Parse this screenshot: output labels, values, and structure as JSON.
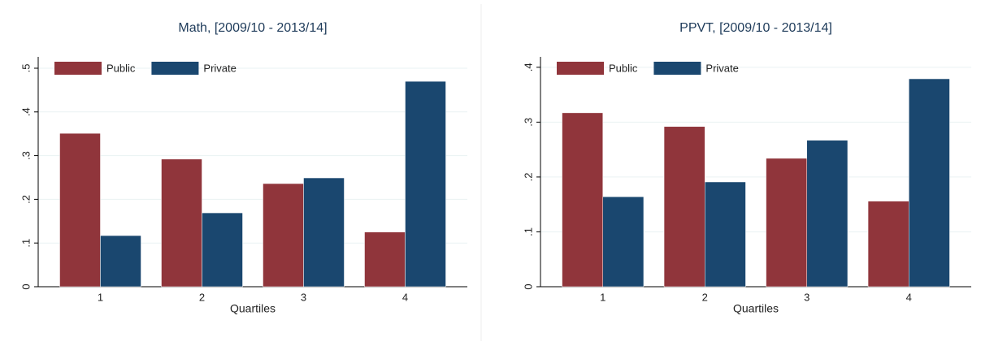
{
  "chart_data": [
    {
      "type": "bar",
      "title": "Math, [2009/10 - 2013/14]",
      "x_label": "Quartiles",
      "categories": [
        "1",
        "2",
        "3",
        "4"
      ],
      "series": [
        {
          "name": "Public",
          "color": "#90353b",
          "values": [
            0.351,
            0.292,
            0.236,
            0.125
          ]
        },
        {
          "name": "Private",
          "color": "#1a476f",
          "values": [
            0.117,
            0.169,
            0.249,
            0.47
          ]
        }
      ],
      "ylim": [
        0,
        0.526
      ],
      "yticks": [
        0,
        {
          "value": 0.1,
          "label": ".1"
        },
        {
          "value": 0.2,
          "label": ".2"
        },
        {
          "value": 0.3,
          "label": ".3"
        },
        {
          "value": 0.4,
          "label": ".4"
        },
        {
          "value": 0.5,
          "label": ".5"
        }
      ],
      "grid": true,
      "legend": "top-left"
    },
    {
      "type": "bar",
      "title": "PPVT, [2009/10 - 2013/14]",
      "x_label": "Quartiles",
      "categories": [
        "1",
        "2",
        "3",
        "4"
      ],
      "series": [
        {
          "name": "Public",
          "color": "#90353b",
          "values": [
            0.317,
            0.292,
            0.234,
            0.156
          ]
        },
        {
          "name": "Private",
          "color": "#1a476f",
          "values": [
            0.164,
            0.191,
            0.267,
            0.379
          ]
        }
      ],
      "ylim": [
        0,
        0.419
      ],
      "yticks": [
        0,
        {
          "value": 0.1,
          "label": ".1"
        },
        {
          "value": 0.2,
          "label": ".2"
        },
        {
          "value": 0.3,
          "label": ".3"
        },
        {
          "value": 0.4,
          "label": ".4"
        }
      ],
      "grid": true,
      "legend": "top-left"
    }
  ]
}
